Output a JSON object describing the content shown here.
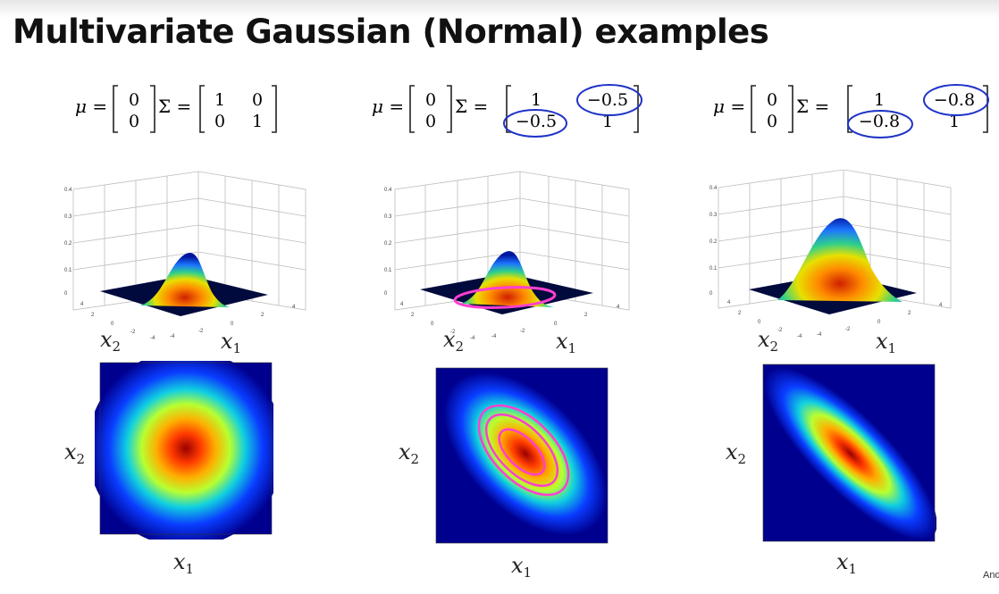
{
  "slide": {
    "title": "Multivariate Gaussian (Normal) examples",
    "footer_credit": "Andrew Ng"
  },
  "examples": [
    {
      "mu": [
        "0",
        "0"
      ],
      "sigma": [
        [
          "1",
          "0"
        ],
        [
          "0",
          "1"
        ]
      ],
      "annotated_offdiag": false,
      "z_ticks": [
        "0.4",
        "0.3",
        "0.2",
        "0.1",
        "0"
      ],
      "x1_label": "x1",
      "x2_label": "x2"
    },
    {
      "mu": [
        "0",
        "0"
      ],
      "sigma": [
        [
          "1",
          "−0.5"
        ],
        [
          "−0.5",
          "1"
        ]
      ],
      "annotated_offdiag": true,
      "z_ticks": [
        "0.4",
        "0.3",
        "0.2",
        "0.1",
        "0"
      ],
      "x1_label": "x1",
      "x2_label": "x2"
    },
    {
      "mu": [
        "0",
        "0"
      ],
      "sigma": [
        [
          "1",
          "−0.8"
        ],
        [
          "−0.8",
          "1"
        ]
      ],
      "annotated_offdiag": true,
      "z_ticks": [
        "0.4",
        "0.3",
        "0.2",
        "0.1",
        "0"
      ],
      "x1_label": "x1",
      "x2_label": "x2"
    }
  ],
  "colors": {
    "annotation_circle": "#1f33c8",
    "contour_highlight": "#ff3fd0",
    "heat_background": "#00008f"
  }
}
